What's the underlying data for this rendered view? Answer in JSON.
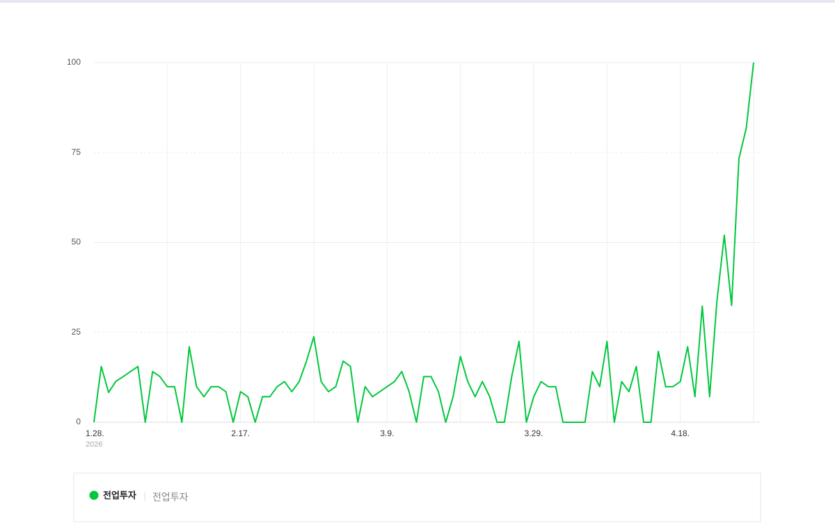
{
  "chart_data": {
    "type": "line",
    "categories": [
      "1.28.",
      null,
      null,
      null,
      null,
      null,
      null,
      null,
      null,
      null,
      null,
      null,
      null,
      null,
      null,
      null,
      null,
      null,
      null,
      null,
      "2.17.",
      null,
      null,
      null,
      null,
      null,
      null,
      null,
      null,
      null,
      null,
      null,
      null,
      null,
      null,
      null,
      null,
      null,
      null,
      null,
      "3.9.",
      null,
      null,
      null,
      null,
      null,
      null,
      null,
      null,
      null,
      null,
      null,
      null,
      null,
      null,
      null,
      null,
      null,
      null,
      null,
      "3.29.",
      null,
      null,
      null,
      null,
      null,
      null,
      null,
      null,
      null,
      null,
      null,
      null,
      null,
      null,
      null,
      null,
      null,
      null,
      null,
      "4.18.",
      null,
      null,
      null,
      null,
      null,
      null,
      null,
      null,
      null,
      null
    ],
    "year": "2026",
    "series": [
      {
        "name": "전업투자",
        "color": "#00c73c",
        "values": [
          0,
          15.5,
          8.3,
          11.4,
          12.7,
          14.1,
          15.5,
          0,
          14.1,
          12.7,
          9.9,
          9.9,
          0,
          21,
          9.9,
          7.1,
          9.9,
          9.9,
          8.5,
          0,
          8.5,
          7.1,
          0,
          7.1,
          7.1,
          9.9,
          11.3,
          8.5,
          11.3,
          17,
          23.8,
          11.3,
          8.5,
          9.9,
          17,
          15.5,
          0,
          9.9,
          7.1,
          8.5,
          9.9,
          11.3,
          14.1,
          8.5,
          0,
          12.7,
          12.7,
          8.5,
          0,
          7.1,
          18.3,
          11.3,
          7.1,
          11.3,
          7.1,
          0,
          0,
          12.7,
          22.5,
          0,
          7.1,
          11.3,
          9.9,
          9.9,
          0,
          0,
          0,
          0,
          14.1,
          9.9,
          22.5,
          0,
          11.3,
          8.5,
          15.5,
          0,
          0,
          19.7,
          9.9,
          9.9,
          11.3,
          21,
          7.1,
          32.3,
          7.1,
          33.7,
          52,
          32.5,
          73.3,
          81.8,
          100
        ]
      }
    ],
    "keywords": [
      "전업투자"
    ],
    "ylim": [
      0,
      100
    ],
    "yticks": [
      0,
      25,
      50,
      75,
      100
    ],
    "grid": true
  }
}
